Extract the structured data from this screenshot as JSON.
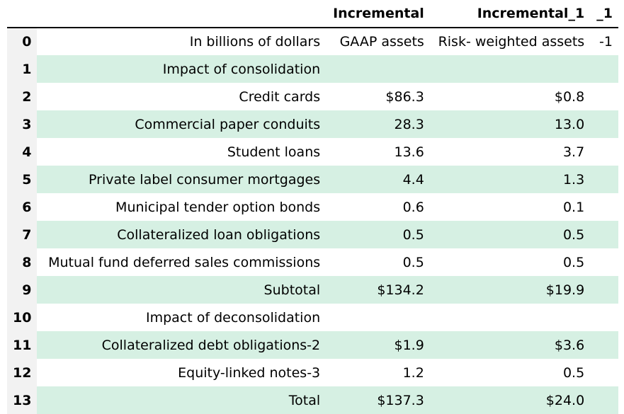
{
  "columns": [
    "",
    "",
    "Incremental",
    "Incremental_1",
    "_1"
  ],
  "rows": [
    {
      "index": "0",
      "label": "In billions of dollars",
      "gaap": "GAAP assets",
      "rwa": "Risk- weighted assets",
      "extra": "-1"
    },
    {
      "index": "1",
      "label": "Impact of consolidation",
      "gaap": "",
      "rwa": "",
      "extra": ""
    },
    {
      "index": "2",
      "label": "Credit cards",
      "gaap": "$86.3",
      "rwa": "$0.8",
      "extra": ""
    },
    {
      "index": "3",
      "label": "Commercial paper conduits",
      "gaap": "28.3",
      "rwa": "13.0",
      "extra": ""
    },
    {
      "index": "4",
      "label": "Student loans",
      "gaap": "13.6",
      "rwa": "3.7",
      "extra": ""
    },
    {
      "index": "5",
      "label": "Private label consumer mortgages",
      "gaap": "4.4",
      "rwa": "1.3",
      "extra": ""
    },
    {
      "index": "6",
      "label": "Municipal tender option bonds",
      "gaap": "0.6",
      "rwa": "0.1",
      "extra": ""
    },
    {
      "index": "7",
      "label": "Collateralized loan obligations",
      "gaap": "0.5",
      "rwa": "0.5",
      "extra": ""
    },
    {
      "index": "8",
      "label": "Mutual fund deferred sales commissions",
      "gaap": "0.5",
      "rwa": "0.5",
      "extra": ""
    },
    {
      "index": "9",
      "label": "Subtotal",
      "gaap": "$134.2",
      "rwa": "$19.9",
      "extra": ""
    },
    {
      "index": "10",
      "label": "Impact of deconsolidation",
      "gaap": "",
      "rwa": "",
      "extra": ""
    },
    {
      "index": "11",
      "label": "Collateralized debt obligations-2",
      "gaap": "$1.9",
      "rwa": "$3.6",
      "extra": ""
    },
    {
      "index": "12",
      "label": "Equity-linked notes-3",
      "gaap": "1.2",
      "rwa": "0.5",
      "extra": ""
    },
    {
      "index": "13",
      "label": "Total",
      "gaap": "$137.3",
      "rwa": "$24.0",
      "extra": ""
    }
  ],
  "colors": {
    "stripe": "#d6f0e3",
    "index_bg": "#f2f2f2"
  }
}
